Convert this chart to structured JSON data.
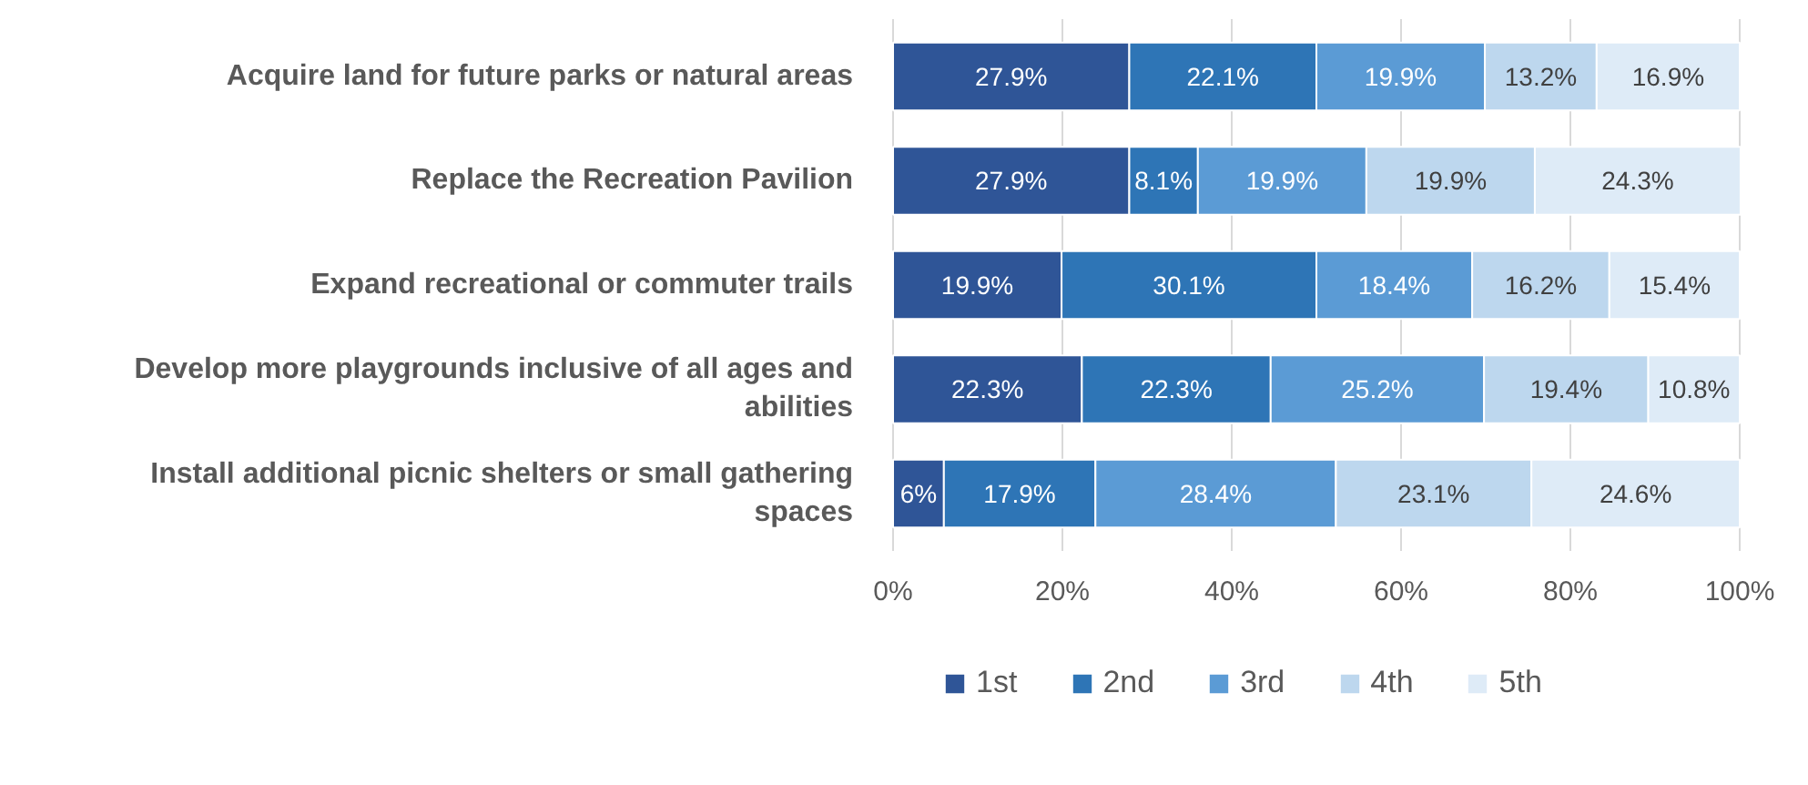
{
  "chart_data": {
    "type": "bar",
    "orientation": "horizontal",
    "stacked": true,
    "categories": [
      "Acquire land for future parks or natural areas",
      "Replace the Recreation Pavilion",
      "Expand recreational or commuter trails",
      "Develop more playgrounds inclusive of all ages and abilities",
      "Install additional picnic shelters or small gathering spaces"
    ],
    "series": [
      {
        "name": "1st",
        "color": "#2f5597",
        "values": [
          27.9,
          27.9,
          19.9,
          22.3,
          6
        ],
        "value_labels": [
          "27.9%",
          "27.9%",
          "19.9%",
          "22.3%",
          "6%"
        ]
      },
      {
        "name": "2nd",
        "color": "#2e75b6",
        "values": [
          22.1,
          8.1,
          30.1,
          22.3,
          17.9
        ],
        "value_labels": [
          "22.1%",
          "8.1%",
          "30.1%",
          "22.3%",
          "17.9%"
        ]
      },
      {
        "name": "3rd",
        "color": "#5b9bd5",
        "values": [
          19.9,
          19.9,
          18.4,
          25.2,
          28.4
        ],
        "value_labels": [
          "19.9%",
          "19.9%",
          "18.4%",
          "25.2%",
          "28.4%"
        ]
      },
      {
        "name": "4th",
        "color": "#bdd7ee",
        "values": [
          13.2,
          19.9,
          16.2,
          19.4,
          23.1
        ],
        "value_labels": [
          "13.2%",
          "19.9%",
          "16.2%",
          "19.4%",
          "23.1%"
        ]
      },
      {
        "name": "5th",
        "color": "#deebf7",
        "values": [
          16.9,
          24.3,
          15.4,
          10.8,
          24.6
        ],
        "value_labels": [
          "16.9%",
          "24.3%",
          "15.4%",
          "10.8%",
          "24.6%"
        ]
      }
    ],
    "xlim": [
      0,
      100
    ],
    "xticks": [
      {
        "value": 0,
        "label": "0%"
      },
      {
        "value": 20,
        "label": "20%"
      },
      {
        "value": 40,
        "label": "40%"
      },
      {
        "value": 60,
        "label": "60%"
      },
      {
        "value": 80,
        "label": "80%"
      },
      {
        "value": 100,
        "label": "100%"
      }
    ],
    "grid": "x",
    "legend": "bottom"
  }
}
